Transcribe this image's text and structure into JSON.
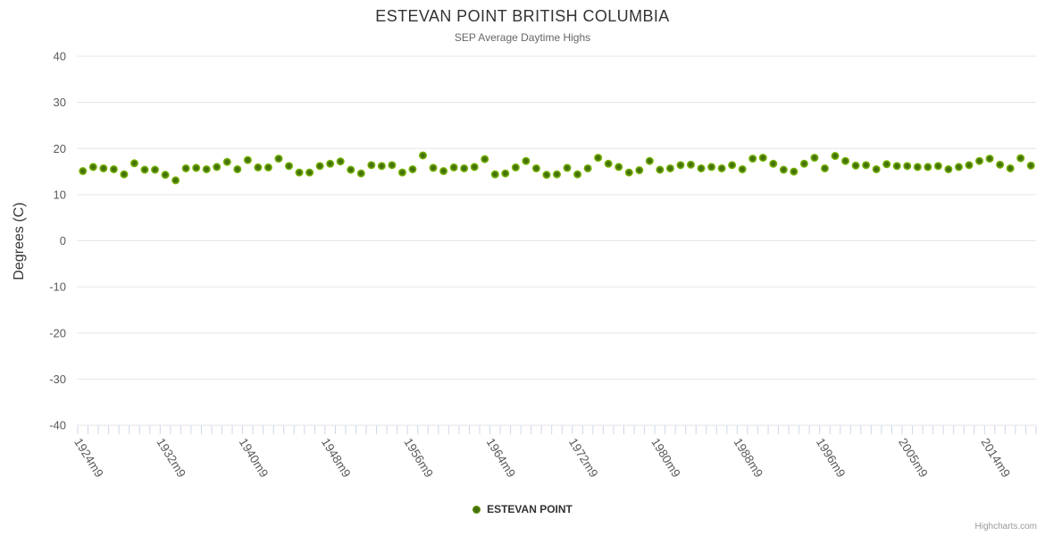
{
  "credit": {
    "label": "Highcharts.com"
  },
  "colors": {
    "marker_outer": "#84c603",
    "marker_inner": "#44700a",
    "grid": "#e6e6e6",
    "axis_tick": "#ccd6eb",
    "axis_label": "#5a5a5a",
    "title": "#333333",
    "subtitle": "#666666"
  },
  "chart_data": {
    "type": "scatter",
    "title": "ESTEVAN POINT BRITISH COLUMBIA",
    "subtitle": "SEP Average Daytime Highs",
    "xlabel": "",
    "ylabel": "Degrees (C)",
    "ylim": [
      -40,
      40
    ],
    "grid": "horizontal",
    "legend_position": "bottom-center",
    "yticks": [
      "40",
      "30",
      "20",
      "10",
      "0",
      "-10",
      "-20",
      "-30",
      "-40"
    ],
    "xtick_label_indices": [
      0,
      8,
      16,
      24,
      32,
      40,
      48,
      56,
      64,
      72,
      80,
      88
    ],
    "visible_xtick_labels": [
      "1924m9",
      "1932m9",
      "1940m9",
      "1948m9",
      "1956m9",
      "1964m9",
      "1972m9",
      "1980m9",
      "1988m9",
      "1996m9",
      "2005m9",
      "2014m9"
    ],
    "series": [
      {
        "name": "ESTEVAN POINT",
        "color": "#84c603"
      }
    ],
    "categories": [
      "1924m9",
      "1925m9",
      "1926m9",
      "1927m9",
      "1928m9",
      "1929m9",
      "1930m9",
      "1931m9",
      "1932m9",
      "1933m9",
      "1934m9",
      "1935m9",
      "1936m9",
      "1937m9",
      "1938m9",
      "1939m9",
      "1940m9",
      "1941m9",
      "1942m9",
      "1943m9",
      "1944m9",
      "1945m9",
      "1946m9",
      "1947m9",
      "1948m9",
      "1949m9",
      "1950m9",
      "1951m9",
      "1952m9",
      "1953m9",
      "1954m9",
      "1955m9",
      "1956m9",
      "1957m9",
      "1958m9",
      "1959m9",
      "1960m9",
      "1961m9",
      "1962m9",
      "1963m9",
      "1964m9",
      "1965m9",
      "1966m9",
      "1967m9",
      "1968m9",
      "1969m9",
      "1970m9",
      "1971m9",
      "1972m9",
      "1973m9",
      "1974m9",
      "1975m9",
      "1976m9",
      "1977m9",
      "1978m9",
      "1979m9",
      "1980m9",
      "1981m9",
      "1982m9",
      "1983m9",
      "1984m9",
      "1985m9",
      "1986m9",
      "1987m9",
      "1988m9",
      "1989m9",
      "1990m9",
      "1991m9",
      "1992m9",
      "1993m9",
      "1994m9",
      "1995m9",
      "1996m9",
      "1998m9",
      "1999m9",
      "2000m9",
      "2001m9",
      "2002m9",
      "2003m9",
      "2004m9",
      "2005m9",
      "2006m9",
      "2007m9",
      "2008m9",
      "2009m9",
      "2010m9",
      "2011m9",
      "2012m9",
      "2014m9",
      "2015m9",
      "2016m9",
      "2017m9",
      "2018m9"
    ],
    "values": [
      15.1,
      16.0,
      15.7,
      15.5,
      14.4,
      16.8,
      15.4,
      15.4,
      14.3,
      13.1,
      15.7,
      15.8,
      15.5,
      16.0,
      17.1,
      15.5,
      17.5,
      15.9,
      15.9,
      17.8,
      16.2,
      14.8,
      14.8,
      16.2,
      16.7,
      17.2,
      15.4,
      14.6,
      16.4,
      16.2,
      16.4,
      14.8,
      15.5,
      18.5,
      15.8,
      15.1,
      15.9,
      15.7,
      16.0,
      17.7,
      14.4,
      14.6,
      15.9,
      17.3,
      15.7,
      14.3,
      14.4,
      15.8,
      14.4,
      15.7,
      18.0,
      16.7,
      16.0,
      14.8,
      15.3,
      17.3,
      15.4,
      15.7,
      16.4,
      16.5,
      15.7,
      16.0,
      15.7,
      16.4,
      15.5,
      17.8,
      18.0,
      16.7,
      15.4,
      15.0,
      16.7,
      18.0,
      15.7,
      18.4,
      17.3,
      16.3,
      16.4,
      15.5,
      16.6,
      16.2,
      16.2,
      16.0,
      16.0,
      16.2,
      15.5,
      16.0,
      16.4,
      17.3,
      17.8,
      16.5,
      15.7,
      17.9,
      16.3
    ]
  }
}
